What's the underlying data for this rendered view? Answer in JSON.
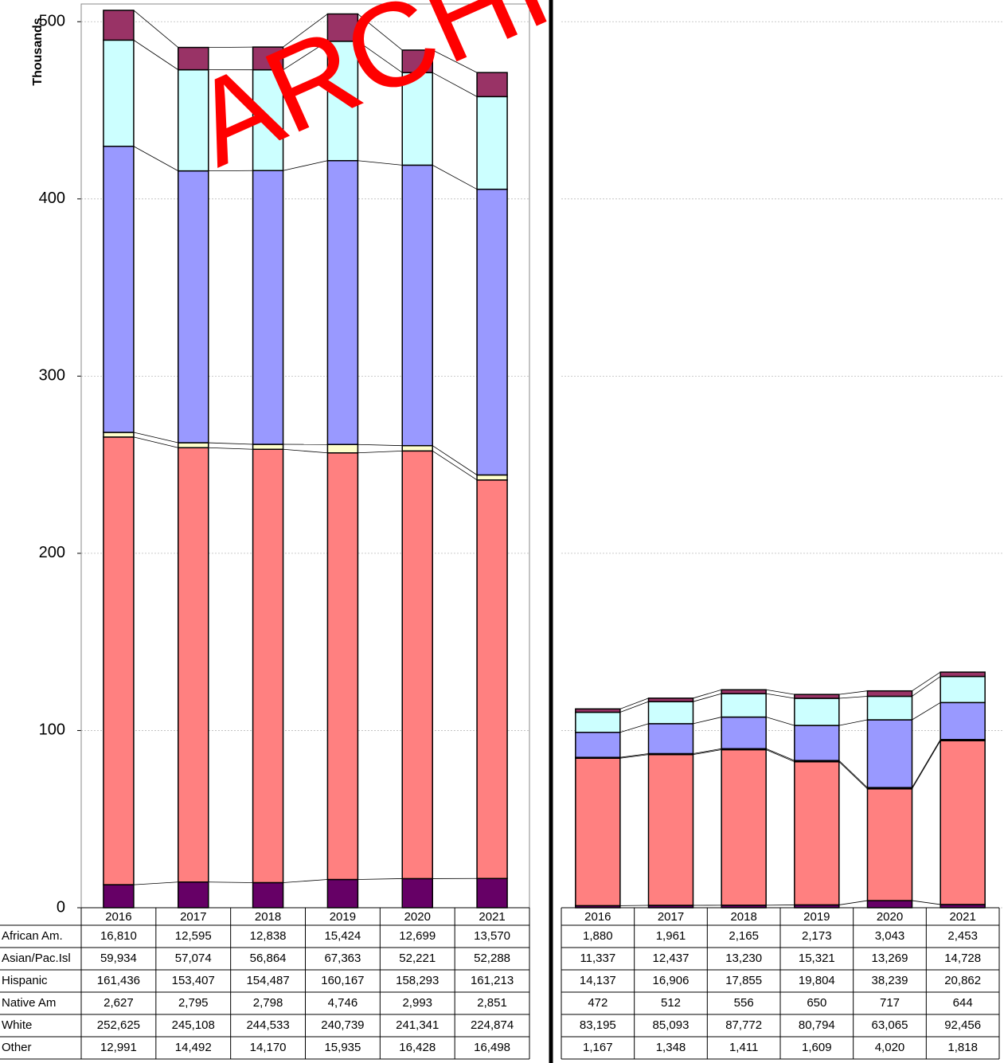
{
  "chart_data": [
    {
      "type": "stacked_bar",
      "ylabel": "Thousands",
      "annotation": "ARCHI",
      "categories": [
        "2016",
        "2017",
        "2018",
        "2019",
        "2020",
        "2021"
      ],
      "ylim": [
        0,
        510
      ],
      "yticks": [
        0,
        100,
        200,
        300,
        400,
        500
      ],
      "grid": true,
      "series": [
        {
          "name": "African Am.",
          "color": "#993366",
          "values": [
            16.81,
            12.595,
            12.838,
            15.424,
            12.699,
            13.57
          ],
          "value_labels": [
            "16,810",
            "12,595",
            "12,838",
            "15,424",
            "12,699",
            "13,570"
          ]
        },
        {
          "name": "Asian/Pac.Isl",
          "color": "#ccffff",
          "values": [
            59.934,
            57.074,
            56.864,
            67.363,
            52.221,
            52.288
          ],
          "value_labels": [
            "59,934",
            "57,074",
            "56,864",
            "67,363",
            "52,221",
            "52,288"
          ]
        },
        {
          "name": "Hispanic",
          "color": "#9999ff",
          "values": [
            161.436,
            153.407,
            154.487,
            160.167,
            158.293,
            161.213
          ],
          "value_labels": [
            "161,436",
            "153,407",
            "154,487",
            "160,167",
            "158,293",
            "161,213"
          ]
        },
        {
          "name": "Native Am",
          "color": "#ffffcc",
          "values": [
            2.627,
            2.795,
            2.798,
            4.746,
            2.993,
            2.851
          ],
          "value_labels": [
            "2,627",
            "2,795",
            "2,798",
            "4,746",
            "2,993",
            "2,851"
          ]
        },
        {
          "name": "White",
          "color": "#ff8080",
          "values": [
            252.625,
            245.108,
            244.533,
            240.739,
            241.341,
            224.874
          ],
          "value_labels": [
            "252,625",
            "245,108",
            "244,533",
            "240,739",
            "241,341",
            "224,874"
          ]
        },
        {
          "name": "Other",
          "color": "#660066",
          "values": [
            12.991,
            14.492,
            14.17,
            15.935,
            16.428,
            16.498
          ],
          "value_labels": [
            "12,991",
            "14,492",
            "14,170",
            "15,935",
            "16,428",
            "16,498"
          ]
        }
      ]
    },
    {
      "type": "stacked_bar",
      "categories": [
        "2016",
        "2017",
        "2018",
        "2019",
        "2020",
        "2021"
      ],
      "ylim": [
        0,
        510
      ],
      "series": [
        {
          "color": "#993366",
          "values": [
            1.88,
            1.961,
            2.165,
            2.173,
            3.043,
            2.453
          ],
          "value_labels": [
            "1,880",
            "1,961",
            "2,165",
            "2,173",
            "3,043",
            "2,453"
          ]
        },
        {
          "color": "#ccffff",
          "values": [
            11.337,
            12.437,
            13.23,
            15.321,
            13.269,
            14.728
          ],
          "value_labels": [
            "11,337",
            "12,437",
            "13,230",
            "15,321",
            "13,269",
            "14,728"
          ]
        },
        {
          "color": "#9999ff",
          "values": [
            14.137,
            16.906,
            17.855,
            19.804,
            38.239,
            20.862
          ],
          "value_labels": [
            "14,137",
            "16,906",
            "17,855",
            "19,804",
            "38,239",
            "20,862"
          ]
        },
        {
          "color": "#ffffcc",
          "values": [
            0.472,
            0.512,
            0.556,
            0.65,
            0.717,
            0.644
          ],
          "value_labels": [
            "472",
            "512",
            "556",
            "650",
            "717",
            "644"
          ]
        },
        {
          "color": "#ff8080",
          "values": [
            83.195,
            85.093,
            87.772,
            80.794,
            63.065,
            92.456
          ],
          "value_labels": [
            "83,195",
            "85,093",
            "87,772",
            "80,794",
            "63,065",
            "92,456"
          ]
        },
        {
          "color": "#660066",
          "values": [
            1.167,
            1.348,
            1.411,
            1.609,
            4.02,
            1.818
          ],
          "value_labels": [
            "1,167",
            "1,348",
            "1,411",
            "1,609",
            "4,020",
            "1,818"
          ]
        }
      ]
    }
  ]
}
